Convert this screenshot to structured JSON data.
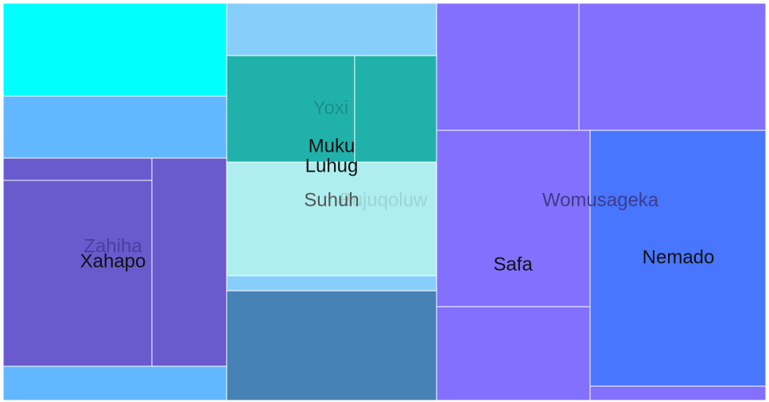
{
  "chart_data": {
    "type": "treemap",
    "groups": [
      {
        "name": "Zahiha",
        "color": "#6a5acd",
        "label_color": "#4b3e9e",
        "children": [
          {
            "name": "",
            "value": 10,
            "color": "#00ffff"
          },
          {
            "name": "",
            "value": 6.5,
            "color": "#63b7ff"
          },
          {
            "name": "",
            "value": 2,
            "color": "#6a5acd"
          },
          {
            "name": "Xahapo",
            "value": 16,
            "color": "#6a5acd",
            "label_color": "#111111"
          },
          {
            "name": "",
            "value": 8,
            "color": "#6a5acd"
          },
          {
            "name": "",
            "value": 4,
            "color": "#63b7ff"
          }
        ]
      },
      {
        "name": "Bujuqoluw",
        "color": "#afeeee",
        "label_color": "#9ad6d6",
        "children": [
          {
            "name": "",
            "value": 5,
            "color": "#87cefa"
          },
          {
            "name": "Yoxi",
            "value": 11,
            "color": "#20b2aa",
            "label_color": "#1b8f88"
          },
          {
            "name": "Muku",
            "value": 2,
            "color": "#afeeee",
            "label_color": "#111111"
          },
          {
            "name": "Luhug",
            "value": 2,
            "color": "#afeeee",
            "label_color": "#111111"
          },
          {
            "name": "Suhuh",
            "value": 9,
            "color": "#afeeee",
            "label_color": "#555555"
          },
          {
            "name": "",
            "value": 1.5,
            "color": "#87cefa"
          },
          {
            "name": "",
            "value": 10,
            "color": "#4682b4"
          }
        ]
      },
      {
        "name": "Womusageka",
        "color": "#8470ff",
        "label_color": "#3c3c8c",
        "children": [
          {
            "name": "",
            "value": 12,
            "color": "#8470ff"
          },
          {
            "name": "",
            "value": 16,
            "color": "#8470ff"
          },
          {
            "name": "Safa",
            "value": 17,
            "color": "#8470ff",
            "label_color": "#111111"
          },
          {
            "name": "Nemado",
            "value": 20,
            "color": "#4876ff",
            "label_color": "#111111"
          },
          {
            "name": "",
            "value": 6,
            "color": "#8470ff"
          }
        ]
      }
    ]
  }
}
